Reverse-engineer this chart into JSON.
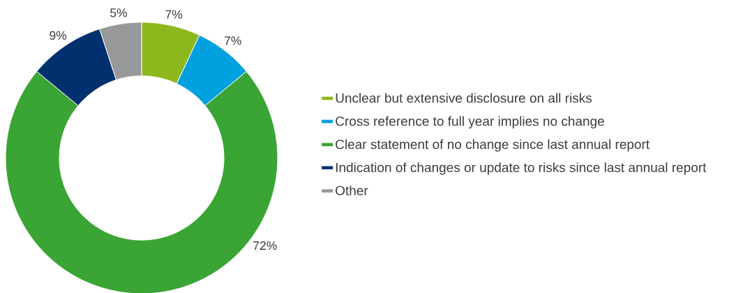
{
  "chart_data": {
    "type": "donut",
    "categories": [
      "Unclear but extensive disclosure on all risks",
      "Cross reference to full year implies no change",
      "Clear statement of no change since last annual report",
      "Indication of changes or update to risks since last annual report",
      "Other"
    ],
    "values": [
      7,
      7,
      72,
      9,
      5
    ],
    "colors": [
      "#8cb81e",
      "#00a1de",
      "#3aa535",
      "#00306e",
      "#97999b"
    ],
    "value_labels": [
      "7%",
      "7%",
      "72%",
      "9%",
      "5%"
    ],
    "legend": "right"
  }
}
